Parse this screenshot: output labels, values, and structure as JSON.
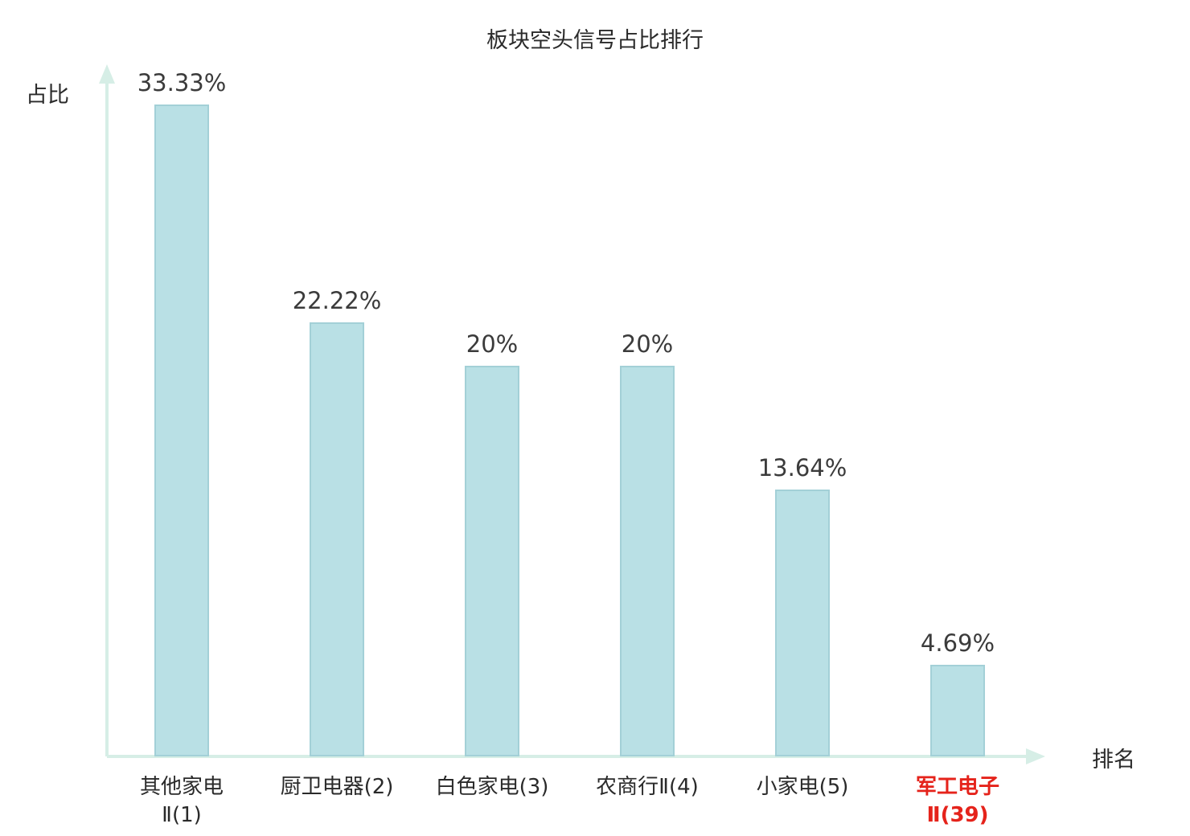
{
  "title": "板块空头信号占比排行",
  "axes": {
    "y_label": "占比",
    "x_label": "排名"
  },
  "chart_data": {
    "type": "bar",
    "title": "板块空头信号占比排行",
    "xlabel": "排名",
    "ylabel": "占比",
    "categories": [
      "其他家电Ⅱ(1)",
      "厨卫电器(2)",
      "白色家电(3)",
      "农商行Ⅱ(4)",
      "小家电(5)",
      "军工电子Ⅱ(39)"
    ],
    "category_lines": [
      [
        "其他家电",
        "Ⅱ(1)"
      ],
      [
        "厨卫电器(2)"
      ],
      [
        "白色家电(3)"
      ],
      [
        "农商行Ⅱ(4)"
      ],
      [
        "小家电(5)"
      ],
      [
        "军工电子",
        "Ⅱ(39)"
      ]
    ],
    "values": [
      33.33,
      22.22,
      20,
      20,
      13.64,
      4.69
    ],
    "value_labels": [
      "33.33%",
      "22.22%",
      "20%",
      "20%",
      "13.64%",
      "4.69%"
    ],
    "highlight_index": 5,
    "ylim": [
      0,
      34
    ],
    "grid": false,
    "legend": "none",
    "bar_color": "#b9e0e5",
    "bar_border_color": "#a3d0d7",
    "axis_color": "#d6eee6",
    "text_color": "#2a2a2a",
    "value_text_color": "#3b3b3b",
    "highlight_text_color": "#e5231b"
  }
}
